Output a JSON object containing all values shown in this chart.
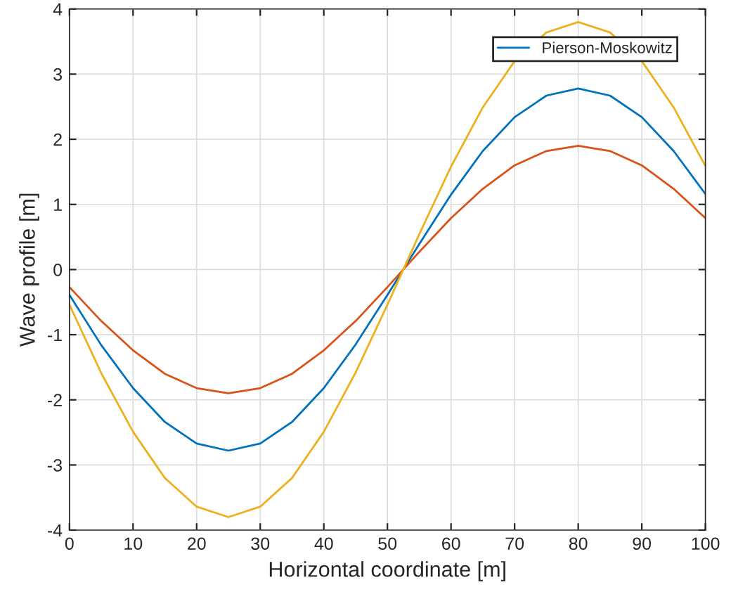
{
  "chart_data": {
    "type": "line",
    "xlabel": "Horizontal coordinate [m]",
    "ylabel": "Wave profile [m]",
    "x": [
      0,
      5,
      10,
      15,
      20,
      25,
      30,
      35,
      40,
      45,
      50,
      55,
      60,
      65,
      70,
      75,
      80,
      85,
      90,
      95,
      100
    ],
    "series": [
      {
        "name": "Pierson-Moskowitz",
        "color": "#0072bd",
        "values": [
          -0.39,
          -1.16,
          -1.82,
          -2.34,
          -2.67,
          -2.78,
          -2.67,
          -2.34,
          -1.82,
          -1.15,
          -0.39,
          0.39,
          1.15,
          1.82,
          2.34,
          2.67,
          2.78,
          2.67,
          2.34,
          1.82,
          1.16
        ]
      },
      {
        "color": "#d95319",
        "values": [
          -0.27,
          -0.79,
          -1.24,
          -1.6,
          -1.82,
          -1.9,
          -1.82,
          -1.6,
          -1.24,
          -0.79,
          -0.27,
          0.27,
          0.79,
          1.24,
          1.6,
          1.82,
          1.9,
          1.82,
          1.6,
          1.24,
          0.79
        ]
      },
      {
        "color": "#edb120",
        "values": [
          -0.54,
          -1.59,
          -2.49,
          -3.2,
          -3.64,
          -3.8,
          -3.64,
          -3.2,
          -2.49,
          -1.58,
          -0.54,
          0.54,
          1.58,
          2.49,
          3.2,
          3.64,
          3.8,
          3.64,
          3.2,
          2.49,
          1.59
        ]
      }
    ],
    "xlim": [
      0,
      100
    ],
    "xticks": [
      0,
      10,
      20,
      30,
      40,
      50,
      60,
      70,
      80,
      90,
      100
    ],
    "ylim": [
      -4,
      4
    ],
    "yticks": [
      -4,
      -3,
      -2,
      -1,
      0,
      1,
      2,
      3,
      4
    ],
    "grid": true,
    "legend": "top right",
    "marker": "none",
    "line_style": "solid"
  }
}
